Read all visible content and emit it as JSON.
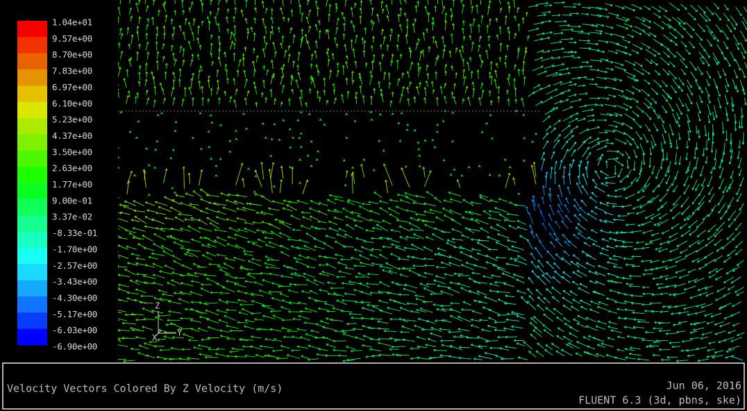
{
  "legend": {
    "labels": [
      "1.04e+01",
      "9.57e+00",
      "8.70e+00",
      "7.83e+00",
      "6.97e+00",
      "6.10e+00",
      "5.23e+00",
      "4.37e+00",
      "3.50e+00",
      "2.63e+00",
      "1.77e+00",
      "9.00e-01",
      "3.37e-02",
      "-8.33e-01",
      "-1.70e+00",
      "-2.57e+00",
      "-3.43e+00",
      "-4.30e+00",
      "-5.17e+00",
      "-6.03e+00",
      "-6.90e+00"
    ]
  },
  "axes": {
    "z": "Z",
    "y": "Y",
    "x": "X"
  },
  "footer": {
    "title": "Velocity Vectors Colored By Z Velocity (m/s)",
    "date": "Jun 06, 2016",
    "version": "FLUENT 6.3 (3d, pbns, ske)"
  }
}
